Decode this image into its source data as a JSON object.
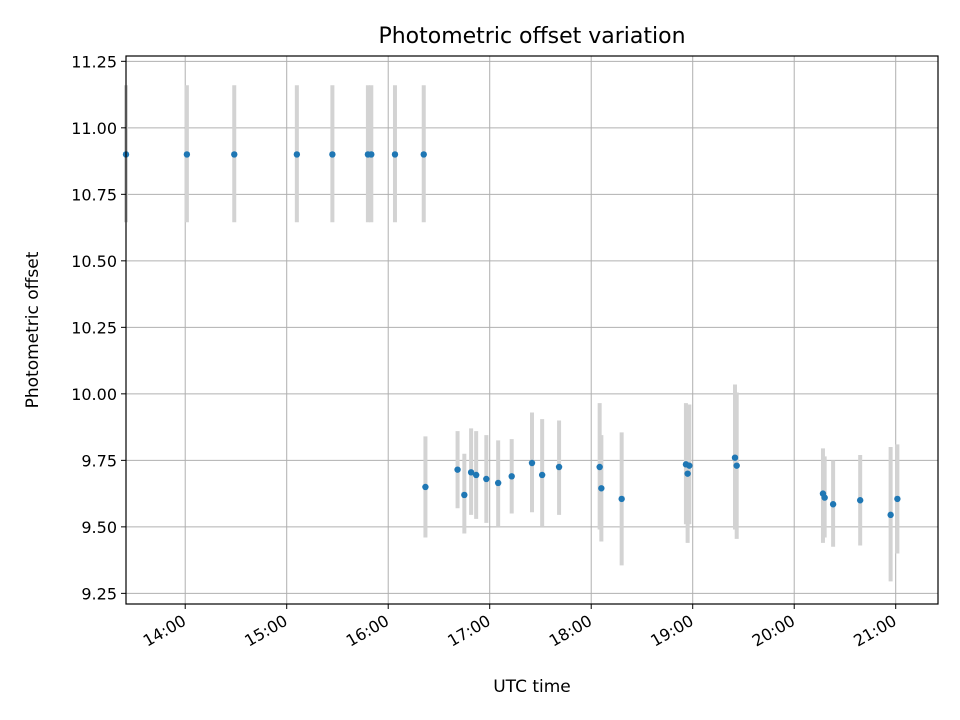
{
  "chart_data": {
    "type": "scatter",
    "title": "Photometric offset variation",
    "xlabel": "UTC time",
    "ylabel": "Photometric offset",
    "x_tick_labels": [
      "14:00",
      "15:00",
      "16:00",
      "17:00",
      "18:00",
      "19:00",
      "20:00",
      "21:00"
    ],
    "y_tick_labels": [
      "9.25",
      "9.50",
      "9.75",
      "10.00",
      "10.25",
      "10.50",
      "10.75",
      "11.00",
      "11.25"
    ],
    "y_ticks": [
      9.25,
      9.5,
      9.75,
      10.0,
      10.25,
      10.5,
      10.75,
      11.0,
      11.25
    ],
    "xlim": [
      "13:25",
      "21:25"
    ],
    "ylim": [
      9.21,
      11.27
    ],
    "grid": true,
    "colors": {
      "point": "#1f77b4",
      "error_bar": "#d3d3d3",
      "grid": "#b0b0b0"
    },
    "points": [
      {
        "x": "13:25",
        "y": 10.9,
        "err_low": 10.645,
        "err_high": 11.16
      },
      {
        "x": "14:01",
        "y": 10.9,
        "err_low": 10.645,
        "err_high": 11.16
      },
      {
        "x": "14:29",
        "y": 10.9,
        "err_low": 10.645,
        "err_high": 11.16
      },
      {
        "x": "15:06",
        "y": 10.9,
        "err_low": 10.645,
        "err_high": 11.16
      },
      {
        "x": "15:27",
        "y": 10.9,
        "err_low": 10.645,
        "err_high": 11.16
      },
      {
        "x": "15:48",
        "y": 10.9,
        "err_low": 10.645,
        "err_high": 11.16
      },
      {
        "x": "15:50",
        "y": 10.9,
        "err_low": 10.645,
        "err_high": 11.16
      },
      {
        "x": "16:04",
        "y": 10.9,
        "err_low": 10.645,
        "err_high": 11.16
      },
      {
        "x": "16:21",
        "y": 10.9,
        "err_low": 10.645,
        "err_high": 11.16
      },
      {
        "x": "16:22",
        "y": 9.65,
        "err_low": 9.46,
        "err_high": 9.84
      },
      {
        "x": "16:41",
        "y": 9.715,
        "err_low": 9.57,
        "err_high": 9.86
      },
      {
        "x": "16:45",
        "y": 9.62,
        "err_low": 9.475,
        "err_high": 9.775
      },
      {
        "x": "16:49",
        "y": 9.705,
        "err_low": 9.545,
        "err_high": 9.87
      },
      {
        "x": "16:52",
        "y": 9.695,
        "err_low": 9.53,
        "err_high": 9.86
      },
      {
        "x": "16:58",
        "y": 9.68,
        "err_low": 9.515,
        "err_high": 9.845
      },
      {
        "x": "17:05",
        "y": 9.665,
        "err_low": 9.5,
        "err_high": 9.825
      },
      {
        "x": "17:13",
        "y": 9.69,
        "err_low": 9.55,
        "err_high": 9.83
      },
      {
        "x": "17:25",
        "y": 9.74,
        "err_low": 9.555,
        "err_high": 9.93
      },
      {
        "x": "17:31",
        "y": 9.695,
        "err_low": 9.5,
        "err_high": 9.905
      },
      {
        "x": "17:41",
        "y": 9.725,
        "err_low": 9.545,
        "err_high": 9.9
      },
      {
        "x": "18:05",
        "y": 9.725,
        "err_low": 9.49,
        "err_high": 9.965
      },
      {
        "x": "18:06",
        "y": 9.645,
        "err_low": 9.445,
        "err_high": 9.845
      },
      {
        "x": "18:18",
        "y": 9.605,
        "err_low": 9.355,
        "err_high": 9.855
      },
      {
        "x": "18:56",
        "y": 9.735,
        "err_low": 9.51,
        "err_high": 9.965
      },
      {
        "x": "18:57",
        "y": 9.7,
        "err_low": 9.44,
        "err_high": 9.96
      },
      {
        "x": "18:58",
        "y": 9.73,
        "err_low": 9.51,
        "err_high": 9.96
      },
      {
        "x": "19:25",
        "y": 9.76,
        "err_low": 9.49,
        "err_high": 10.035
      },
      {
        "x": "19:26",
        "y": 9.73,
        "err_low": 9.455,
        "err_high": 10.005
      },
      {
        "x": "20:17",
        "y": 9.625,
        "err_low": 9.44,
        "err_high": 9.795
      },
      {
        "x": "20:18",
        "y": 9.61,
        "err_low": 9.46,
        "err_high": 9.765
      },
      {
        "x": "20:23",
        "y": 9.585,
        "err_low": 9.425,
        "err_high": 9.75
      },
      {
        "x": "20:39",
        "y": 9.6,
        "err_low": 9.43,
        "err_high": 9.77
      },
      {
        "x": "20:57",
        "y": 9.545,
        "err_low": 9.295,
        "err_high": 9.8
      },
      {
        "x": "21:01",
        "y": 9.605,
        "err_low": 9.4,
        "err_high": 9.81
      }
    ]
  }
}
